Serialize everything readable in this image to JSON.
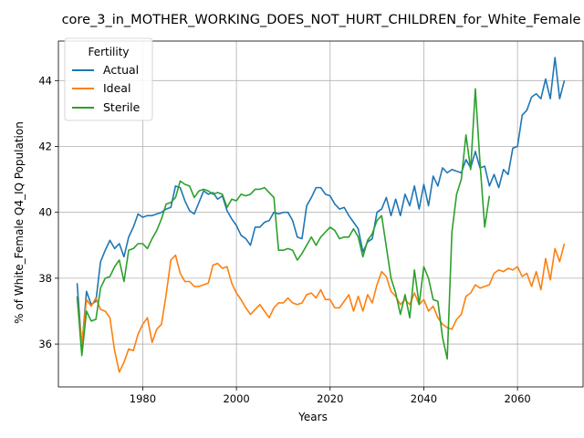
{
  "chart_data": {
    "type": "line",
    "title": "core_3_in_MOTHER_WORKING_DOES_NOT_HURT_CHILDREN_for_White_Female",
    "xlabel": "Years",
    "ylabel": "% of White_Female Q4_IQ Population",
    "xlim": [
      1962,
      2074
    ],
    "ylim": [
      34.7,
      45.2
    ],
    "xticks": [
      1980,
      2000,
      2020,
      2040,
      2060
    ],
    "yticks": [
      36,
      38,
      40,
      42,
      44
    ],
    "grid": true,
    "legend": {
      "title": "Fertility",
      "placement": "top-left"
    },
    "x": [
      1966,
      1967,
      1968,
      1969,
      1970,
      1971,
      1972,
      1973,
      1974,
      1975,
      1976,
      1977,
      1978,
      1979,
      1980,
      1981,
      1982,
      1983,
      1984,
      1985,
      1986,
      1987,
      1988,
      1989,
      1990,
      1991,
      1992,
      1993,
      1994,
      1995,
      1996,
      1997,
      1998,
      1999,
      2000,
      2001,
      2002,
      2003,
      2004,
      2005,
      2006,
      2007,
      2008,
      2009,
      2010,
      2011,
      2012,
      2013,
      2014,
      2015,
      2016,
      2017,
      2018,
      2019,
      2020,
      2021,
      2022,
      2023,
      2024,
      2025,
      2026,
      2027,
      2028,
      2029,
      2030,
      2031,
      2032,
      2033,
      2034,
      2035,
      2036,
      2037,
      2038,
      2039,
      2040,
      2041,
      2042,
      2043,
      2044,
      2045,
      2046,
      2047,
      2048,
      2049,
      2050,
      2051,
      2052,
      2053,
      2054,
      2055,
      2056,
      2057,
      2058,
      2059,
      2060,
      2061,
      2062,
      2063,
      2064,
      2065,
      2066,
      2067,
      2068,
      2069,
      2070
    ],
    "series": [
      {
        "name": "Actual",
        "color": "#1f77b4",
        "values": [
          37.85,
          35.9,
          37.6,
          37.2,
          37.3,
          38.5,
          38.85,
          39.15,
          38.9,
          39.05,
          38.65,
          39.25,
          39.55,
          39.95,
          39.85,
          39.9,
          39.9,
          39.95,
          40.0,
          40.1,
          40.15,
          40.8,
          40.75,
          40.35,
          40.05,
          39.95,
          40.3,
          40.65,
          40.55,
          40.6,
          40.4,
          40.5,
          40.05,
          39.8,
          39.6,
          39.3,
          39.2,
          39.0,
          39.55,
          39.55,
          39.7,
          39.75,
          40.0,
          39.95,
          40.0,
          40.0,
          39.75,
          39.25,
          39.2,
          40.2,
          40.45,
          40.75,
          40.75,
          40.55,
          40.5,
          40.25,
          40.1,
          40.15,
          39.9,
          39.7,
          39.5,
          38.8,
          39.1,
          39.2,
          40.0,
          40.1,
          40.45,
          39.9,
          40.4,
          39.9,
          40.55,
          40.2,
          40.8,
          40.1,
          40.85,
          40.2,
          41.1,
          40.8,
          41.35,
          41.2,
          41.3,
          41.25,
          41.2,
          41.6,
          41.35,
          41.85,
          41.35,
          41.4,
          40.8,
          41.15,
          40.75,
          41.3,
          41.15,
          41.95,
          42.0,
          42.95,
          43.1,
          43.5,
          43.6,
          43.45,
          44.05,
          43.45,
          44.7,
          43.45,
          44.0
        ]
      },
      {
        "name": "Ideal",
        "color": "#ff7f0e",
        "values": [
          37.4,
          36.0,
          37.35,
          37.15,
          37.4,
          37.05,
          37.0,
          36.8,
          35.8,
          35.15,
          35.45,
          35.85,
          35.8,
          36.3,
          36.6,
          36.8,
          36.05,
          36.45,
          36.6,
          37.5,
          38.55,
          38.7,
          38.15,
          37.9,
          37.9,
          37.75,
          37.75,
          37.8,
          37.85,
          38.4,
          38.45,
          38.3,
          38.35,
          37.85,
          37.55,
          37.35,
          37.1,
          36.9,
          37.05,
          37.2,
          37.0,
          36.8,
          37.1,
          37.25,
          37.25,
          37.4,
          37.25,
          37.2,
          37.25,
          37.5,
          37.55,
          37.4,
          37.65,
          37.35,
          37.35,
          37.1,
          37.1,
          37.3,
          37.5,
          37.0,
          37.45,
          37.0,
          37.5,
          37.25,
          37.8,
          38.2,
          38.05,
          37.6,
          37.45,
          37.2,
          37.35,
          37.2,
          37.55,
          37.2,
          37.35,
          37.0,
          37.15,
          36.8,
          36.6,
          36.5,
          36.45,
          36.75,
          36.9,
          37.45,
          37.55,
          37.8,
          37.7,
          37.75,
          37.8,
          38.15,
          38.25,
          38.2,
          38.3,
          38.25,
          38.35,
          38.05,
          38.15,
          37.75,
          38.2,
          37.65,
          38.6,
          37.95,
          38.9,
          38.5,
          39.05
        ]
      },
      {
        "name": "Sterile",
        "color": "#2ca02c",
        "values": [
          37.45,
          35.65,
          37.0,
          36.7,
          36.75,
          37.7,
          38.0,
          38.05,
          38.35,
          38.55,
          37.9,
          38.85,
          38.9,
          39.05,
          39.05,
          38.9,
          39.2,
          39.45,
          39.8,
          40.25,
          40.3,
          40.45,
          40.95,
          40.85,
          40.8,
          40.45,
          40.65,
          40.7,
          40.65,
          40.55,
          40.6,
          40.55,
          40.15,
          40.4,
          40.35,
          40.55,
          40.5,
          40.55,
          40.7,
          40.7,
          40.75,
          40.6,
          40.45,
          38.85,
          38.85,
          38.9,
          38.85,
          38.55,
          38.75,
          39.0,
          39.25,
          39.0,
          39.25,
          39.4,
          39.55,
          39.45,
          39.2,
          39.25,
          39.25,
          39.5,
          39.25,
          38.65,
          39.15,
          39.35,
          39.75,
          39.9,
          38.95,
          38.0,
          37.55,
          36.9,
          37.5,
          36.8,
          38.25,
          37.2,
          38.35,
          38.0,
          37.35,
          37.3,
          36.2,
          35.55,
          39.4,
          40.55,
          41.0,
          42.35,
          41.3,
          43.75,
          41.5,
          39.55,
          40.5,
          null,
          null,
          null,
          null,
          null,
          null,
          null,
          null,
          null,
          null,
          null,
          null,
          null,
          null,
          null,
          null
        ]
      }
    ]
  }
}
